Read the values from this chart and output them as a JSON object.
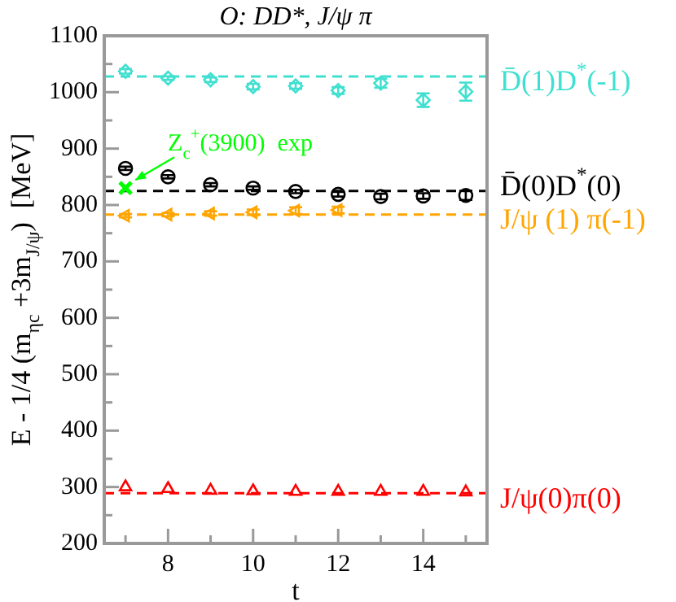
{
  "chart_data": {
    "type": "scatter",
    "title": "O: DD*, J/ψ π",
    "xlabel": "t",
    "ylabel": "E - 1/4 (m$_{ηc}$ +3m$_{J/ψ}$)  [MeV]",
    "xlim": [
      6.5,
      15.5
    ],
    "xticks": [
      {
        "value": 7,
        "label": null
      },
      8,
      {
        "value": 9,
        "label": null
      },
      10,
      {
        "value": 11,
        "label": null
      },
      12,
      {
        "value": 13,
        "label": null
      },
      14,
      {
        "value": 15,
        "label": null
      }
    ],
    "ylim": [
      200,
      1100
    ],
    "yticks": [
      200,
      {
        "value": 250,
        "label": null
      },
      300,
      {
        "value": 350,
        "label": null
      },
      400,
      {
        "value": 450,
        "label": null
      },
      500,
      {
        "value": 550,
        "label": null
      },
      600,
      {
        "value": 650,
        "label": null
      },
      700,
      {
        "value": 750,
        "label": null
      },
      800,
      {
        "value": 850,
        "label": null
      },
      900,
      {
        "value": 950,
        "label": null
      },
      1000,
      {
        "value": 1050,
        "label": null
      },
      1100
    ],
    "grid": false,
    "legend": false,
    "series": [
      {
        "color": "#40e0d0",
        "marker": "diamond",
        "x": [
          7,
          8,
          9,
          10,
          11,
          12,
          13,
          14,
          15
        ],
        "values": [
          1037,
          1025,
          1022,
          1010,
          1011,
          1003,
          1016,
          986,
          1001
        ],
        "errors": [
          4,
          3,
          4,
          5,
          5,
          6,
          8,
          12,
          16
        ]
      },
      {
        "color": "#000000",
        "marker": "circle",
        "x": [
          7,
          8,
          9,
          10,
          11,
          12,
          13,
          14,
          15
        ],
        "values": [
          865,
          850,
          836,
          830,
          824,
          819,
          815,
          816,
          817
        ],
        "errors": [
          3,
          3,
          3,
          3,
          3,
          4,
          5,
          5,
          8
        ]
      },
      {
        "color": "#ffa500",
        "marker": "triangle",
        "x": [
          7,
          8,
          9,
          10,
          11,
          12
        ],
        "values": [
          781,
          783,
          785,
          787,
          790,
          791
        ],
        "errors": [
          3,
          3,
          4,
          5,
          6,
          6
        ]
      },
      {
        "color": "#ff0000",
        "marker": "triangle",
        "x": [
          7,
          8,
          9,
          10,
          11,
          12,
          13,
          14,
          15
        ],
        "values": [
          300,
          297,
          294,
          293,
          292,
          292,
          292,
          292,
          291
        ]
      },
      {
        "color": "#00ff00",
        "marker": "cross",
        "x": [
          7
        ],
        "values": [
          830
        ]
      }
    ],
    "ref_lines": [
      {
        "axis": "y",
        "value": 1028,
        "label": "D̄(1)D$^{*}$(-1)",
        "color": "#40e0d0",
        "line_style": "dashed"
      },
      {
        "axis": "y",
        "value": 825,
        "label": "D̄(0)D$^{*}$(0)",
        "color": "#000000",
        "line_style": "dashed"
      },
      {
        "axis": "y",
        "value": 783,
        "label": "J/ψ (1) π(-1)",
        "color": "#ffa500",
        "line_style": "dashed"
      },
      {
        "axis": "y",
        "value": 289,
        "label": "J/ψ(0)π(0)",
        "color": "#ff0000",
        "line_style": "dashed"
      }
    ],
    "annotations": [
      {
        "text": "Z$_{c}$$^{+}$(3900)  exp",
        "x": 7,
        "y": 830
      }
    ]
  }
}
